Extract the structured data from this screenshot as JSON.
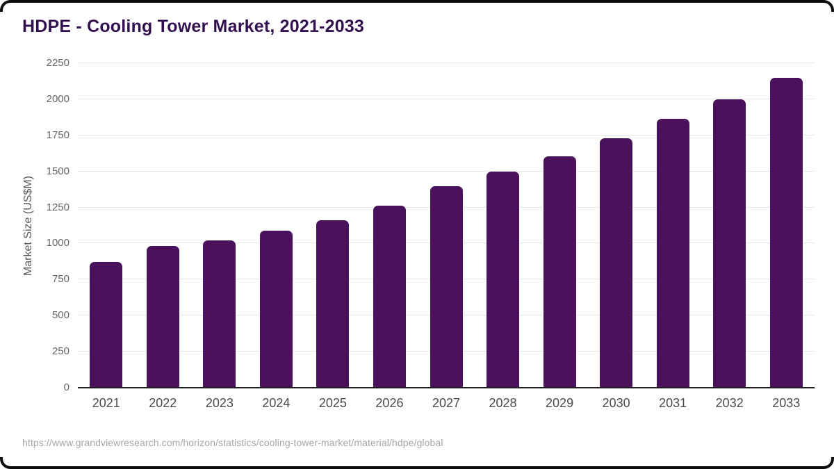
{
  "header": {
    "title": "HDPE - Cooling Tower Market, 2021-2033"
  },
  "footer": {
    "url": "https://www.grandviewresearch.com/horizon/statistics/cooling-tower-market/material/hdpe/global"
  },
  "colors": {
    "bar": "#4a115c",
    "title": "#321050",
    "gridline": "#e8e8e8",
    "axis_line": "#1f1f1f",
    "y_tick_text": "#666666",
    "x_tick_text": "#4a4a4a",
    "footer_text": "#a6a6a6",
    "frame": "#0c0c0c"
  },
  "chart_data": {
    "type": "bar",
    "title": "HDPE - Cooling Tower Market, 2021-2033",
    "categories": [
      "2021",
      "2022",
      "2023",
      "2024",
      "2025",
      "2026",
      "2027",
      "2028",
      "2029",
      "2030",
      "2031",
      "2032",
      "2033"
    ],
    "values": [
      870,
      985,
      1020,
      1090,
      1160,
      1260,
      1395,
      1500,
      1605,
      1730,
      1865,
      2000,
      2150
    ],
    "xlabel": "",
    "ylabel": "Market Size (US$M)",
    "ylim": [
      0,
      2250
    ],
    "ytick_step": 250,
    "y_ticks": [
      0,
      250,
      500,
      750,
      1000,
      1250,
      1500,
      1750,
      2000,
      2250
    ],
    "grid": "horizontal",
    "legend": "none",
    "bar_color": "#4a115c"
  }
}
